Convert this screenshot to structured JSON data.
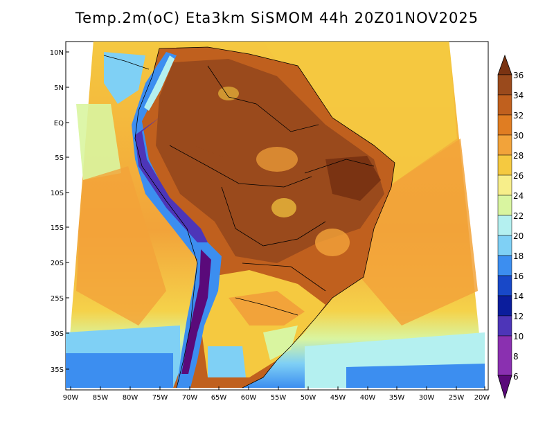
{
  "title": "Temp.2m(oC) Eta3km SiSMOM 44h 20Z01NOV2025",
  "lat_labels": [
    "10N",
    "5N",
    "EQ",
    "5S",
    "10S",
    "15S",
    "20S",
    "25S",
    "30S",
    "35S"
  ],
  "lon_labels": [
    "90W",
    "85W",
    "80W",
    "75W",
    "70W",
    "65W",
    "60W",
    "55W",
    "50W",
    "45W",
    "40W",
    "35W",
    "30W",
    "25W",
    "20W"
  ],
  "colorbar": {
    "labels": [
      "36",
      "34",
      "32",
      "30",
      "28",
      "26",
      "24",
      "22",
      "20",
      "18",
      "16",
      "14",
      "12",
      "10",
      "8",
      "6"
    ],
    "colors": [
      "#7a3312",
      "#9a4a1c",
      "#c0601e",
      "#e07d22",
      "#f2a33a",
      "#f5c940",
      "#f7ee8a",
      "#d9f5a0",
      "#b4f0f0",
      "#7fd0f5",
      "#3c8ef0",
      "#1848c8",
      "#0b1d9c",
      "#4d35b8",
      "#8a30b0",
      "#5a0a7a"
    ]
  }
}
